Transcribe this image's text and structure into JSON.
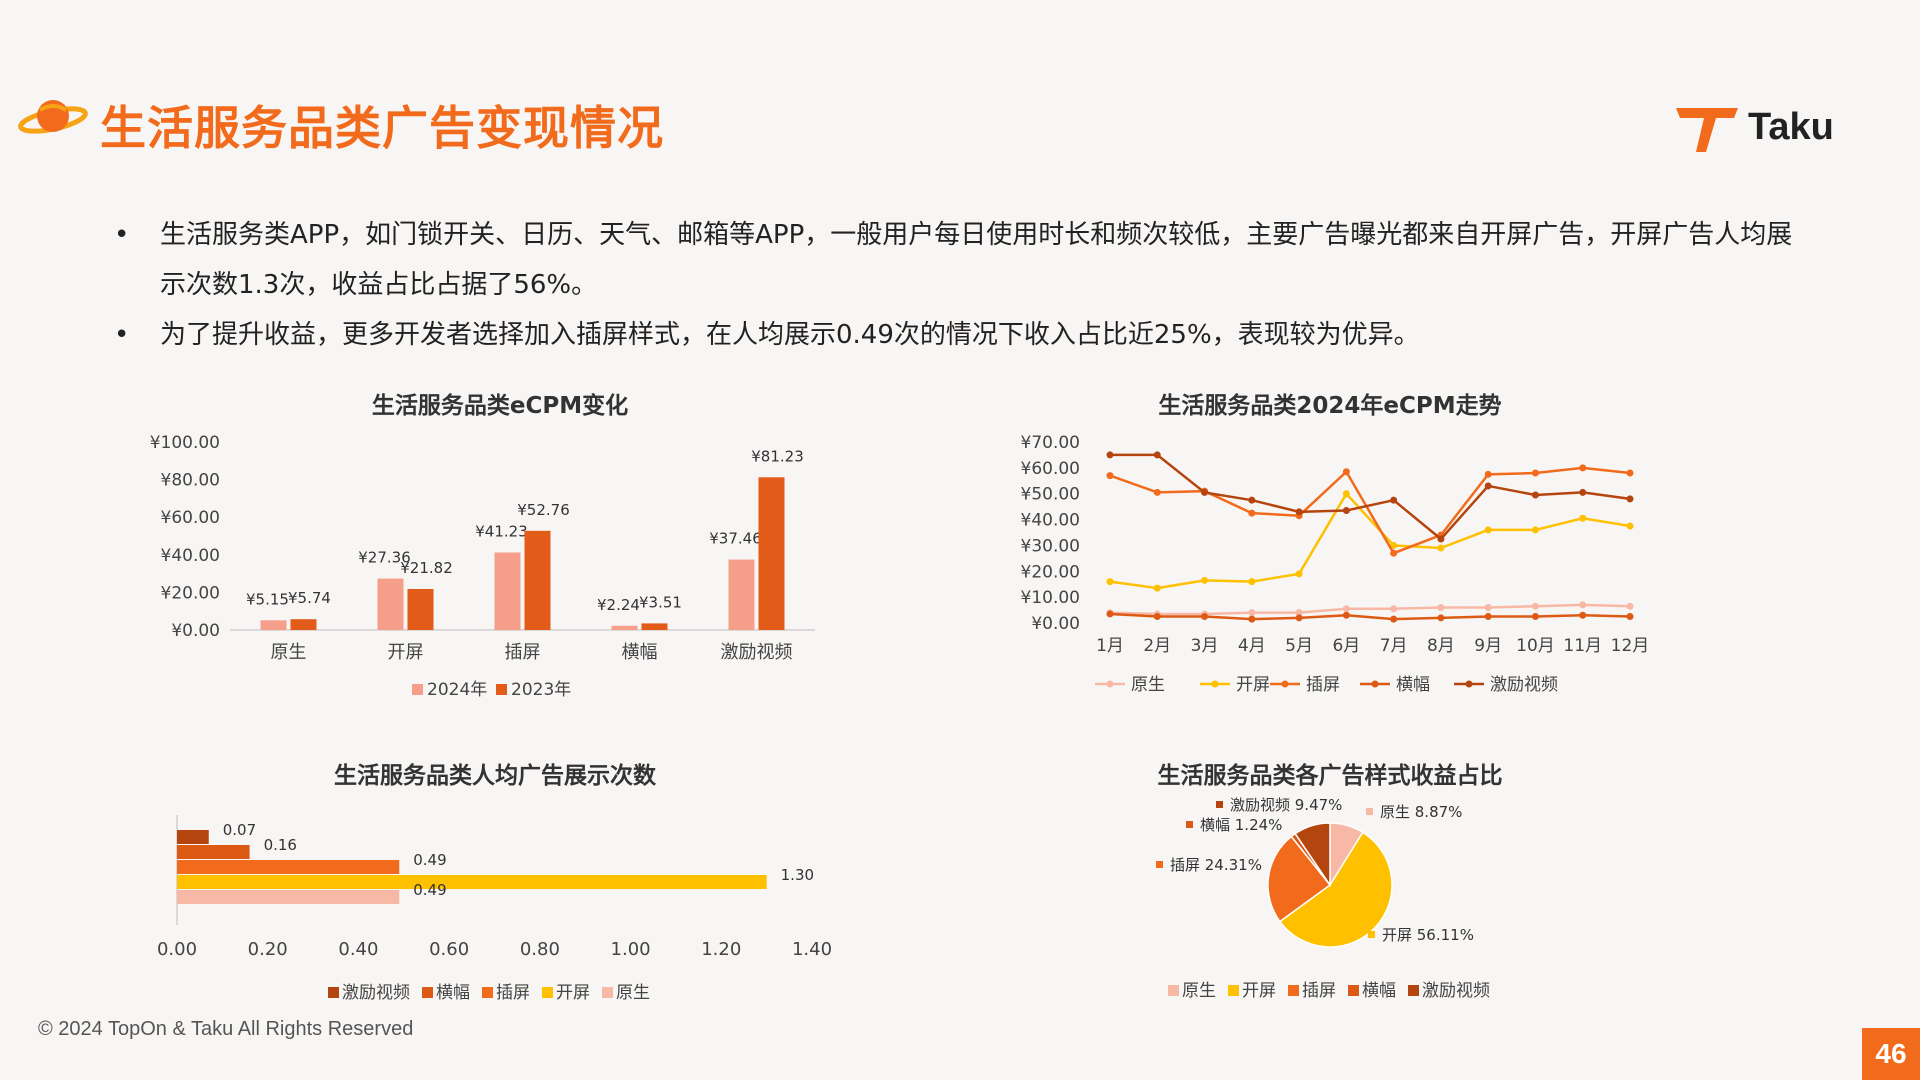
{
  "header": {
    "title": "生活服务品类广告变现情况",
    "brand": "Taku"
  },
  "bullets": [
    "生活服务类APP，如门锁开关、日历、天气、邮箱等APP，一般用户每日使用时长和频次较低，主要广告曝光都来自开屏广告，开屏广告人均展示次数1.3次，收益占比占据了56%。",
    "为了提升收益，更多开发者选择加入插屏样式，在人均展示0.49次的情况下收入占比近25%，表现较为优异。"
  ],
  "colors": {
    "accent": "#f26a1b",
    "native": "#f7b9a6",
    "splash": "#ffc000",
    "interstitial": "#f26a1b",
    "banner": "#dd5a14",
    "rewarded": "#b5450f",
    "bar2024": "#f59f8a",
    "bar2023": "#e25b18"
  },
  "chart_data": [
    {
      "type": "bar",
      "title": "生活服务品类eCPM变化",
      "categories": [
        "原生",
        "开屏",
        "插屏",
        "横幅",
        "激励视频"
      ],
      "series": [
        {
          "name": "2024年",
          "values": [
            5.15,
            27.36,
            41.23,
            2.24,
            37.46
          ],
          "labels": [
            "¥5.15",
            "¥27.36",
            "¥41.23",
            "¥2.24",
            "¥37.46"
          ]
        },
        {
          "name": "2023年",
          "values": [
            5.74,
            21.82,
            52.76,
            3.51,
            81.23
          ],
          "labels": [
            "¥5.74",
            "¥21.82",
            "¥52.76",
            "¥3.51",
            "¥81.23"
          ]
        }
      ],
      "ylim": [
        0,
        100
      ],
      "yticks": [
        "¥100.00",
        "¥80.00",
        "¥60.00",
        "¥40.00",
        "¥20.00",
        "¥0.00"
      ],
      "legend": "bottom"
    },
    {
      "type": "line",
      "title": "生活服务品类2024年eCPM走势",
      "categories": [
        "1月",
        "2月",
        "3月",
        "4月",
        "5月",
        "6月",
        "7月",
        "8月",
        "9月",
        "10月",
        "11月",
        "12月"
      ],
      "series": [
        {
          "name": "原生",
          "values": [
            4,
            3.5,
            3.5,
            4,
            4,
            5.5,
            5.5,
            6,
            6,
            6.5,
            7,
            6.5
          ]
        },
        {
          "name": "开屏",
          "values": [
            16,
            13.5,
            16.5,
            16,
            19,
            50,
            30,
            29,
            36,
            36,
            40.5,
            37.5
          ]
        },
        {
          "name": "插屏",
          "values": [
            57,
            50.5,
            51,
            42.5,
            41.5,
            58.5,
            27,
            34,
            57.5,
            58,
            60,
            58
          ]
        },
        {
          "name": "横幅",
          "values": [
            3.5,
            2.5,
            2.5,
            1.5,
            2,
            3,
            1.5,
            2,
            2.5,
            2.5,
            3,
            2.5
          ]
        },
        {
          "name": "激励视频",
          "values": [
            65,
            65,
            50.5,
            47.5,
            43,
            43.5,
            47.5,
            32.5,
            53,
            49.5,
            50.5,
            48
          ]
        }
      ],
      "ylim": [
        0,
        70
      ],
      "yticks": [
        "¥70.00",
        "¥60.00",
        "¥50.00",
        "¥40.00",
        "¥30.00",
        "¥20.00",
        "¥10.00",
        "¥0.00"
      ],
      "legend": "bottom"
    },
    {
      "type": "bar",
      "orientation": "horizontal",
      "title": "生活服务品类人均广告展示次数",
      "categories": [
        "激励视频",
        "横幅",
        "插屏",
        "开屏",
        "原生"
      ],
      "values": [
        0.07,
        0.16,
        0.49,
        1.3,
        0.49
      ],
      "labels": [
        "0.07",
        "0.16",
        "0.49",
        "1.30",
        "0.49"
      ],
      "xlim": [
        0,
        1.4
      ],
      "xticks": [
        "0.00",
        "0.20",
        "0.40",
        "0.60",
        "0.80",
        "1.00",
        "1.20",
        "1.40"
      ],
      "legend": "bottom"
    },
    {
      "type": "pie",
      "title": "生活服务品类各广告样式收益占比",
      "slices": [
        {
          "name": "原生",
          "value": 8.87,
          "label": "原生 8.87%"
        },
        {
          "name": "开屏",
          "value": 56.11,
          "label": "开屏 56.11%"
        },
        {
          "name": "插屏",
          "value": 24.31,
          "label": "插屏 24.31%"
        },
        {
          "name": "横幅",
          "value": 1.24,
          "label": "横幅 1.24%"
        },
        {
          "name": "激励视频",
          "value": 9.47,
          "label": "激励视频 9.47%"
        }
      ],
      "legend": "bottom"
    }
  ],
  "footer": {
    "copyright": "© 2024 TopOn & Taku All Rights Reserved",
    "page": "46"
  }
}
